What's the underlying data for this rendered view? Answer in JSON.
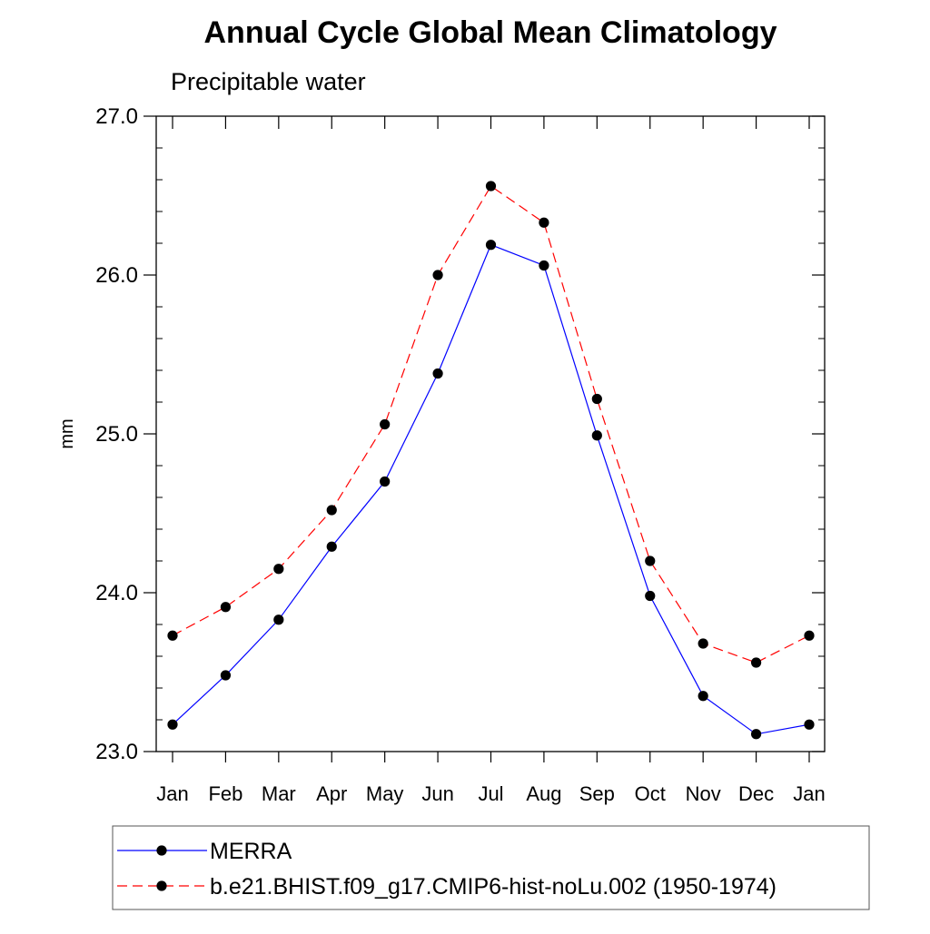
{
  "chart_data": {
    "type": "line",
    "title": "Annual Cycle Global Mean Climatology",
    "subtitle": "Precipitable water",
    "xlabel": "",
    "ylabel": "mm",
    "categories": [
      "Jan",
      "Feb",
      "Mar",
      "Apr",
      "May",
      "Jun",
      "Jul",
      "Aug",
      "Sep",
      "Oct",
      "Nov",
      "Dec",
      "Jan"
    ],
    "y_ticks": [
      "23.0",
      "24.0",
      "25.0",
      "26.0",
      "27.0"
    ],
    "ylim": [
      23.0,
      27.0
    ],
    "y_minor_step": 0.2,
    "grid": false,
    "legend_position": "bottom",
    "series": [
      {
        "name": "MERRA",
        "color": "#0000ff",
        "line_style": "solid",
        "marker": "filled-circle",
        "values": [
          23.17,
          23.48,
          23.83,
          24.29,
          24.7,
          25.38,
          26.19,
          26.06,
          24.99,
          23.98,
          23.35,
          23.11,
          23.17
        ]
      },
      {
        "name": "b.e21.BHIST.f09_g17.CMIP6-hist-noLu.002 (1950-1974)",
        "color": "#ff0000",
        "line_style": "dashed",
        "marker": "filled-circle",
        "values": [
          23.73,
          23.91,
          24.15,
          24.52,
          25.06,
          26.0,
          26.56,
          26.33,
          25.22,
          24.2,
          23.68,
          23.56,
          23.73
        ]
      }
    ]
  }
}
